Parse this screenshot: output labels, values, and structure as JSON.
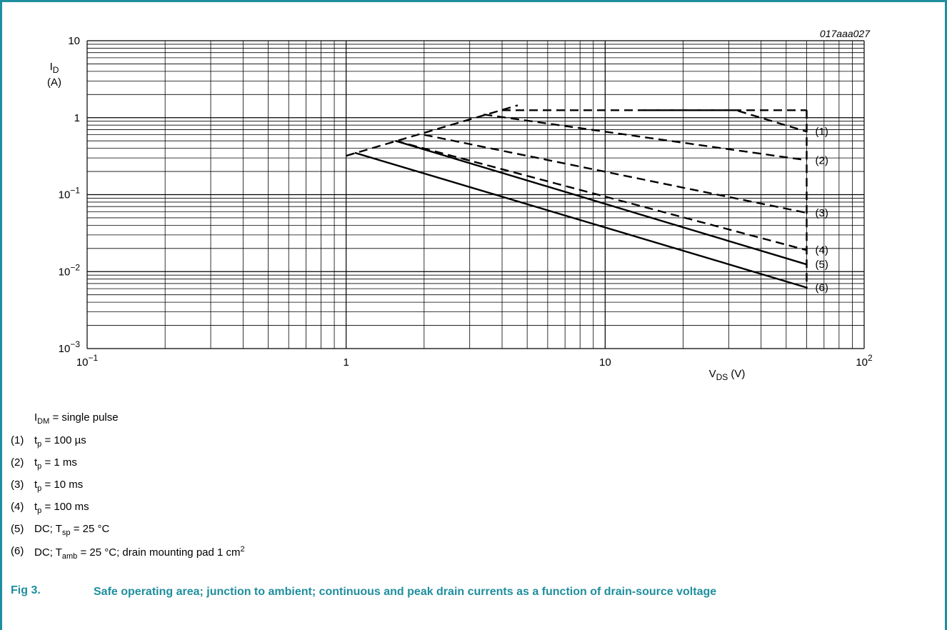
{
  "figure_code": "017aaa027",
  "chart_data": {
    "type": "line",
    "x_scale": "log",
    "y_scale": "log",
    "xlim": [
      0.1,
      100
    ],
    "ylim": [
      0.001,
      10
    ],
    "grid": true,
    "x_ticks": [
      {
        "value": 0.1,
        "mant": "10",
        "exp": "−1"
      },
      {
        "value": 1,
        "mant": "1",
        "exp": ""
      },
      {
        "value": 10,
        "mant": "10",
        "exp": ""
      },
      {
        "value": 100,
        "mant": "10",
        "exp": "2"
      }
    ],
    "y_ticks": [
      {
        "value": 10,
        "mant": "10",
        "exp": ""
      },
      {
        "value": 1,
        "mant": "1",
        "exp": ""
      },
      {
        "value": 0.1,
        "mant": "10",
        "exp": "−1"
      },
      {
        "value": 0.01,
        "mant": "10",
        "exp": "−2"
      },
      {
        "value": 0.001,
        "mant": "10",
        "exp": "−3"
      }
    ],
    "y_axis_label": {
      "sym": "I",
      "sub": "D",
      "unit": "(A)"
    },
    "x_axis_label": {
      "sym": "V",
      "sub": "DS",
      "unit": " (V)"
    },
    "limit_line": {
      "x": [
        1.0,
        4.6
      ],
      "y": [
        0.32,
        1.45
      ]
    },
    "current_limit": {
      "x": [
        4.0,
        60
      ],
      "y": [
        1.25,
        1.25
      ]
    },
    "voltage_limit": {
      "x": [
        60,
        60
      ],
      "y": [
        1.25,
        0.006
      ]
    },
    "series": [
      {
        "name": "(1)",
        "style": "dashed",
        "x": [
          14,
          32,
          60
        ],
        "y": [
          1.25,
          1.25,
          0.66
        ]
      },
      {
        "name": "(2)",
        "style": "dashed",
        "x": [
          3.4,
          60
        ],
        "y": [
          1.1,
          0.28
        ]
      },
      {
        "name": "(3)",
        "style": "dashed",
        "x": [
          2.0,
          60
        ],
        "y": [
          0.6,
          0.058
        ]
      },
      {
        "name": "(4)",
        "style": "dashed",
        "x": [
          1.55,
          60
        ],
        "y": [
          0.5,
          0.019
        ]
      },
      {
        "name": "(5)",
        "style": "solid",
        "x": [
          1.55,
          60
        ],
        "y": [
          0.5,
          0.0124
        ]
      },
      {
        "name": "(6)",
        "style": "solid",
        "x": [
          1.08,
          60
        ],
        "y": [
          0.35,
          0.0062
        ]
      }
    ]
  },
  "legend": {
    "idm": {
      "sym": "I",
      "sub": "DM",
      "rest": " = single pulse"
    },
    "items": [
      {
        "num": "(1)",
        "parts": [
          {
            "t": "t"
          },
          {
            "sub": "p"
          },
          {
            "t": " = 100 µs"
          }
        ]
      },
      {
        "num": "(2)",
        "parts": [
          {
            "t": "t"
          },
          {
            "sub": "p"
          },
          {
            "t": " = 1 ms"
          }
        ]
      },
      {
        "num": "(3)",
        "parts": [
          {
            "t": "t"
          },
          {
            "sub": "p"
          },
          {
            "t": " = 10 ms"
          }
        ]
      },
      {
        "num": "(4)",
        "parts": [
          {
            "t": "t"
          },
          {
            "sub": "p"
          },
          {
            "t": " = 100 ms"
          }
        ]
      },
      {
        "num": "(5)",
        "parts": [
          {
            "t": "DC; T"
          },
          {
            "sub": "sp"
          },
          {
            "t": " = 25 °C"
          }
        ]
      },
      {
        "num": "(6)",
        "parts": [
          {
            "t": "DC; T"
          },
          {
            "sub": "amb"
          },
          {
            "t": " = 25 °C; drain mounting pad 1 cm"
          },
          {
            "sup": "2"
          }
        ]
      }
    ]
  },
  "caption": {
    "label": "Fig 3.",
    "text": "Safe operating area; junction to ambient; continuous and peak drain currents as a function of drain-source voltage"
  },
  "colors": {
    "accent": "#1f8e9e",
    "line": "#000000"
  }
}
